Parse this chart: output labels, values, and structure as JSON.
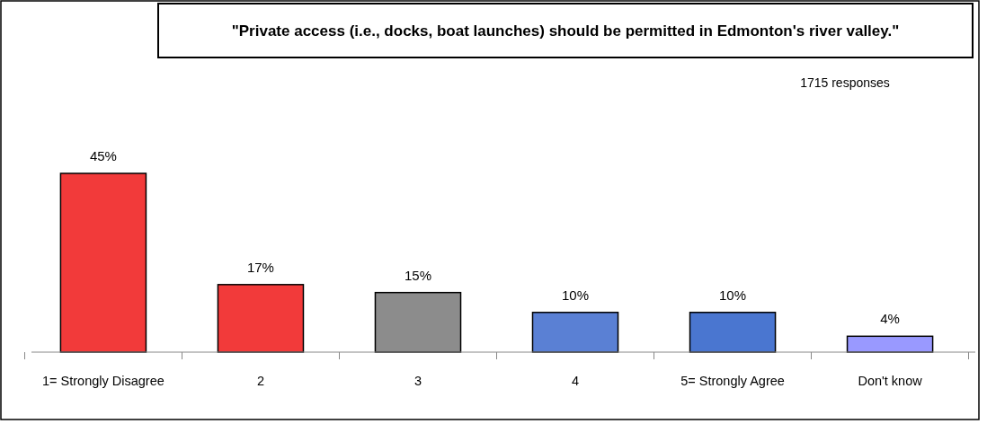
{
  "chart_data": {
    "type": "bar",
    "title": "\"Private access (i.e., docks, boat launches) should be permitted in Edmonton's river valley.\"",
    "categories": [
      "1= Strongly Disagree",
      "2",
      "3",
      "4",
      "5= Strongly Agree",
      "Don't know"
    ],
    "values": [
      45,
      17,
      15,
      10,
      10,
      4
    ],
    "colors": [
      "#f23a3a",
      "#f23a3a",
      "#8c8c8c",
      "#5a80d4",
      "#4a76d0",
      "#9999ff"
    ],
    "value_labels": [
      "45%",
      "17%",
      "15%",
      "10%",
      "10%",
      "4%"
    ],
    "annotations": [
      "1715 responses"
    ]
  }
}
